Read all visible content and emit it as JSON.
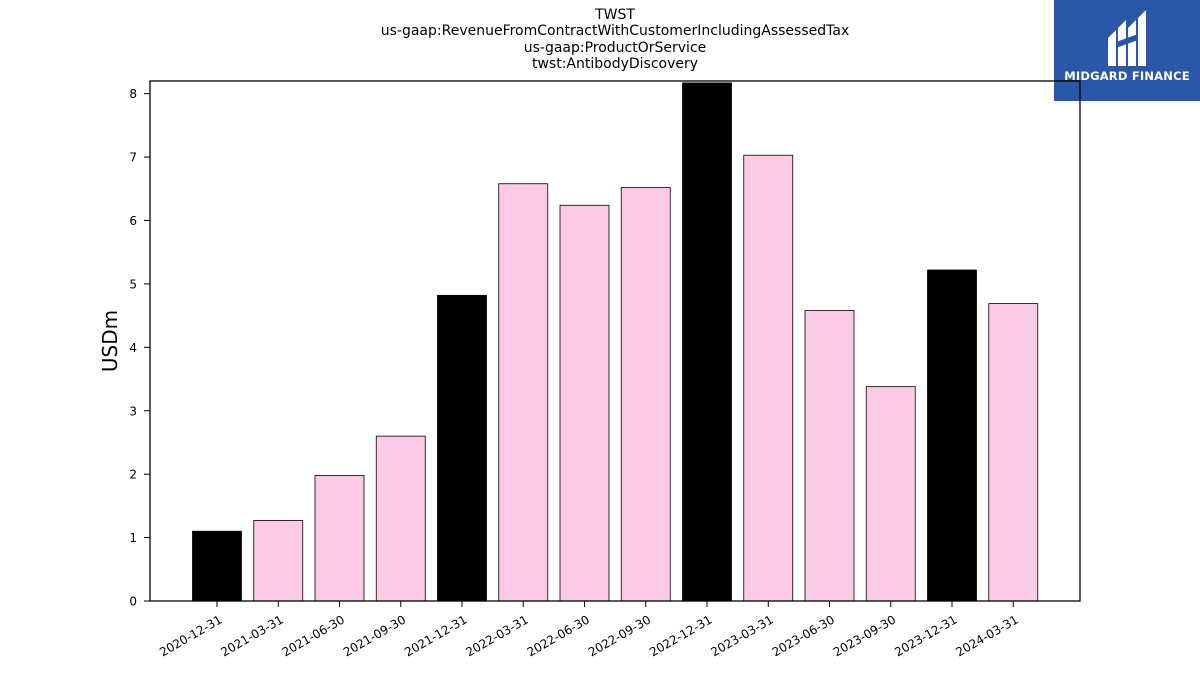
{
  "title_lines": [
    "TWST",
    "us-gaap:RevenueFromContractWithCustomerIncludingAssessedTax",
    "us-gaap:ProductOrService",
    "twst:AntibodyDiscovery"
  ],
  "logo": {
    "text": "MIDGARD FINANCE",
    "color": "#2b57a8"
  },
  "chart_data": {
    "type": "bar",
    "title": "TWST\nus-gaap:RevenueFromContractWithCustomerIncludingAssessedTax\nus-gaap:ProductOrService\ntwst:AntibodyDiscovery",
    "xlabel": "",
    "ylabel": "USDm",
    "ylim": [
      0,
      8.2
    ],
    "yticks": [
      0,
      1,
      2,
      3,
      4,
      5,
      6,
      7,
      8
    ],
    "categories": [
      "2020-12-31",
      "2021-03-31",
      "2021-06-30",
      "2021-09-30",
      "2021-12-31",
      "2022-03-31",
      "2022-06-30",
      "2022-09-30",
      "2022-12-31",
      "2023-03-31",
      "2023-06-30",
      "2023-09-30",
      "2023-12-31",
      "2024-03-31"
    ],
    "values": [
      1.1,
      1.27,
      1.98,
      2.6,
      4.82,
      6.58,
      6.24,
      6.52,
      8.17,
      7.03,
      4.58,
      3.38,
      5.22,
      4.69
    ],
    "bar_colors": [
      "#000000",
      "#fbcae4",
      "#fbcae4",
      "#fbcae4",
      "#000000",
      "#fbcae4",
      "#fbcae4",
      "#fbcae4",
      "#000000",
      "#fbcae4",
      "#fbcae4",
      "#fbcae4",
      "#000000",
      "#fbcae4"
    ],
    "grid": false,
    "legend": "none"
  }
}
